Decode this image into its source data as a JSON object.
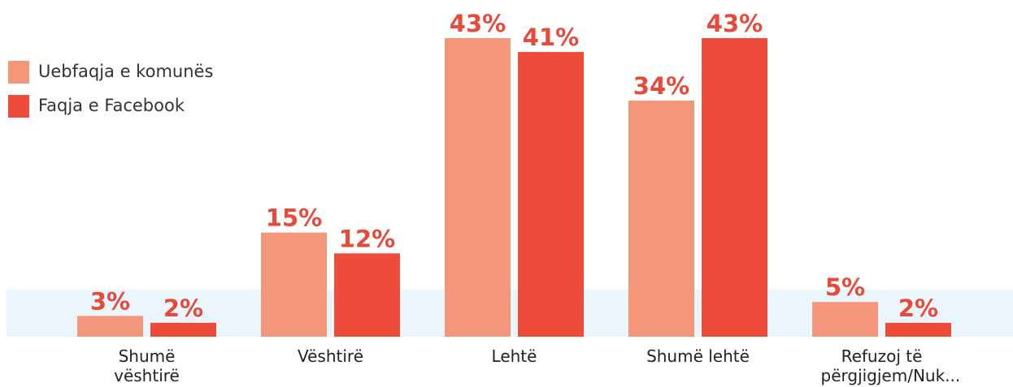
{
  "chart_data": {
    "type": "bar",
    "categories": [
      "Shumë vështirë",
      "Vështirë",
      "Lehtë",
      "Shumë lehtë",
      "Refuzoj të përgjigjem/Nuk..."
    ],
    "series": [
      {
        "name": "Uebfaqja e komunës",
        "color": "#f4967a",
        "values": [
          3,
          15,
          43,
          34,
          5
        ],
        "value_labels": [
          "3%",
          "15%",
          "43%",
          "34%",
          "5%"
        ]
      },
      {
        "name": "Faqja e Facebook",
        "color": "#ee4c3a",
        "values": [
          2,
          12,
          41,
          43,
          2
        ],
        "value_labels": [
          "2%",
          "12%",
          "41%",
          "43%",
          "2%"
        ]
      }
    ]
  }
}
